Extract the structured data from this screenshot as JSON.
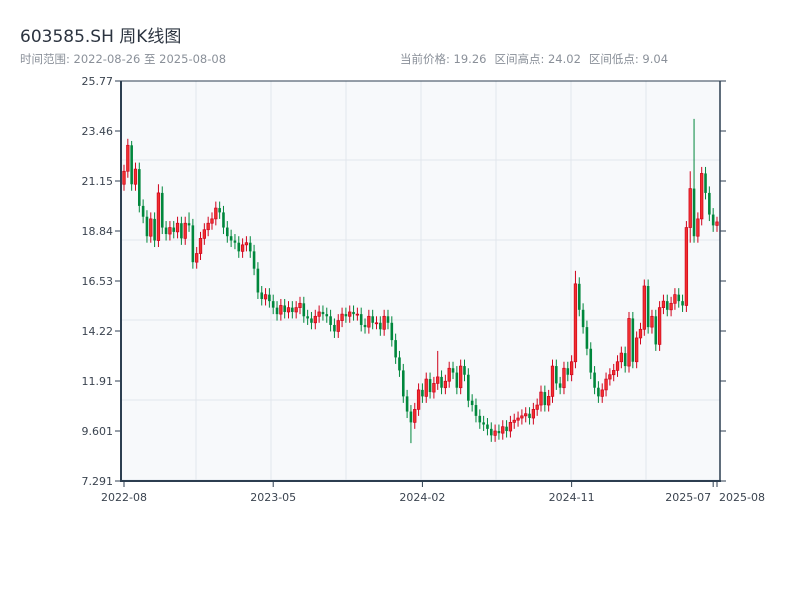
{
  "header": {
    "title": "603585.SH 周K线图",
    "range_label": "时间范围: 2022-08-26 至 2025-08-08",
    "current_price": "当前价格: 19.26",
    "range_high": "区间高点: 24.02",
    "range_low": "区间低点: 9.04"
  },
  "colors": {
    "up": "#d0021b",
    "up_fill": "#f0302f",
    "down": "#00873c",
    "axis": "#2c3e50",
    "grid": "#e2e6ec",
    "plot_bg": "#f7f9fb"
  },
  "chart_data": {
    "type": "candlestick",
    "title": "603585.SH 周K线图",
    "frequency": "weekly",
    "start_date": "2022-08-26",
    "end_date": "2025-08-08",
    "ylim": [
      7.291,
      25.77
    ],
    "yticks": [
      "25.77",
      "23.46",
      "21.15",
      "18.84",
      "16.53",
      "14.22",
      "11.91",
      "9.601",
      "7.291"
    ],
    "xticks": [
      {
        "label": "2022-08",
        "week": 0
      },
      {
        "label": "2023-05",
        "week": 39
      },
      {
        "label": "2024-02",
        "week": 78
      },
      {
        "label": "2024-11",
        "week": 117
      },
      {
        "label": "2025-07",
        "week": 154
      },
      {
        "label": "2025-08",
        "week": 155
      }
    ],
    "grid": true,
    "open": [
      21.0,
      21.6,
      22.8,
      21.0,
      21.7,
      20.0,
      19.5,
      18.6,
      19.4,
      18.4,
      20.6,
      19.0,
      18.7,
      19.0,
      18.8,
      19.2,
      18.5,
      19.2,
      19.1,
      17.4,
      17.8,
      18.5,
      18.9,
      19.2,
      19.4,
      19.9,
      19.7,
      19.0,
      18.6,
      18.4,
      18.3,
      17.9,
      18.2,
      18.3,
      17.9,
      17.1,
      16.0,
      15.7,
      15.9,
      15.6,
      15.3,
      15.0,
      15.4,
      15.1,
      15.3,
      15.1,
      15.3,
      15.5,
      14.9,
      14.8,
      14.6,
      14.9,
      15.1,
      15.0,
      14.9,
      14.5,
      14.2,
      14.7,
      15.0,
      14.9,
      15.1,
      15.0,
      15.0,
      14.5,
      14.4,
      14.9,
      14.6,
      14.6,
      14.3,
      14.9,
      14.6,
      13.8,
      13.0,
      12.4,
      11.2,
      10.5,
      10.0,
      10.6,
      11.5,
      11.2,
      12.0,
      11.4,
      11.8,
      12.1,
      11.6,
      11.9,
      12.5,
      12.3,
      11.6,
      12.6,
      12.2,
      11.0,
      10.8,
      10.3,
      10.0,
      9.9,
      9.7,
      9.4,
      9.6,
      9.5,
      9.8,
      9.6,
      10.0,
      10.1,
      10.2,
      10.3,
      10.4,
      10.2,
      10.6,
      10.8,
      11.4,
      10.8,
      11.2,
      12.6,
      11.8,
      11.6,
      12.5,
      12.2,
      12.8,
      16.4,
      15.2,
      14.4,
      13.4,
      12.3,
      11.6,
      11.2,
      11.5,
      12.0,
      12.2,
      12.4,
      12.8,
      13.2,
      12.6,
      14.8,
      12.8,
      13.9,
      14.3,
      16.3,
      14.4,
      14.9,
      13.6,
      15.3,
      15.6,
      15.2,
      15.5,
      15.9,
      15.6,
      15.4,
      19.0,
      20.8,
      18.6,
      19.4,
      21.5,
      20.6,
      19.6,
      19.1
    ],
    "high": [
      21.9,
      23.1,
      23.0,
      22.0,
      22.0,
      20.3,
      19.8,
      19.7,
      19.7,
      21.0,
      20.9,
      19.3,
      19.3,
      19.3,
      19.5,
      19.5,
      19.5,
      19.7,
      19.4,
      18.1,
      18.8,
      19.2,
      19.5,
      19.7,
      20.2,
      20.2,
      20.0,
      19.3,
      18.9,
      18.7,
      18.6,
      18.5,
      18.6,
      18.6,
      18.2,
      17.4,
      16.3,
      16.2,
      16.2,
      15.9,
      15.6,
      15.7,
      15.7,
      15.6,
      15.6,
      15.6,
      15.8,
      15.8,
      15.2,
      15.1,
      15.2,
      15.4,
      15.4,
      15.3,
      15.2,
      14.8,
      15.0,
      15.3,
      15.3,
      15.4,
      15.4,
      15.3,
      15.3,
      14.8,
      15.2,
      15.2,
      14.9,
      14.9,
      15.2,
      15.2,
      14.9,
      14.1,
      13.3,
      12.7,
      11.5,
      10.8,
      10.9,
      11.8,
      11.8,
      12.3,
      12.3,
      12.1,
      13.3,
      12.4,
      12.2,
      12.8,
      12.8,
      12.6,
      12.9,
      12.9,
      12.5,
      11.3,
      11.1,
      10.6,
      10.3,
      10.2,
      10.0,
      9.9,
      9.9,
      10.1,
      10.1,
      10.3,
      10.4,
      10.5,
      10.6,
      10.7,
      10.7,
      10.9,
      11.1,
      11.7,
      11.7,
      11.5,
      12.9,
      12.9,
      12.1,
      12.8,
      12.8,
      13.1,
      17.0,
      16.7,
      15.5,
      14.7,
      13.7,
      12.6,
      11.9,
      11.8,
      12.3,
      12.5,
      12.7,
      13.1,
      13.5,
      13.5,
      15.1,
      15.1,
      14.2,
      14.6,
      16.6,
      16.6,
      15.2,
      15.2,
      15.6,
      15.9,
      15.9,
      15.8,
      16.2,
      16.2,
      15.9,
      19.3,
      21.6,
      24.02,
      19.7,
      21.8,
      21.8,
      20.9,
      19.9,
      19.5
    ],
    "low": [
      20.7,
      21.3,
      20.7,
      20.7,
      19.7,
      19.2,
      18.3,
      18.3,
      18.1,
      18.1,
      18.7,
      18.4,
      18.4,
      18.5,
      18.5,
      18.2,
      18.2,
      18.8,
      17.1,
      17.1,
      17.5,
      18.2,
      18.6,
      18.9,
      19.1,
      19.4,
      18.7,
      18.3,
      18.1,
      18.0,
      17.6,
      17.6,
      17.9,
      17.6,
      16.8,
      15.7,
      15.4,
      15.4,
      15.3,
      15.0,
      14.7,
      14.7,
      14.8,
      14.8,
      14.8,
      14.8,
      15.0,
      14.6,
      14.5,
      14.3,
      14.3,
      14.6,
      14.7,
      14.6,
      14.2,
      13.9,
      13.9,
      14.4,
      14.6,
      14.6,
      14.7,
      14.7,
      14.2,
      14.1,
      14.1,
      14.3,
      14.3,
      14.0,
      14.0,
      14.3,
      13.5,
      12.7,
      12.1,
      10.9,
      10.2,
      9.04,
      9.7,
      10.3,
      10.9,
      10.9,
      11.1,
      11.1,
      11.5,
      11.3,
      11.3,
      11.6,
      12.0,
      11.3,
      11.3,
      11.9,
      10.7,
      10.5,
      10.0,
      9.7,
      9.6,
      9.4,
      9.1,
      9.1,
      9.2,
      9.2,
      9.3,
      9.3,
      9.7,
      9.8,
      9.9,
      10.0,
      9.9,
      9.9,
      10.3,
      10.5,
      10.5,
      10.5,
      10.9,
      11.5,
      11.3,
      11.3,
      11.9,
      11.9,
      12.5,
      14.9,
      14.1,
      13.1,
      12.0,
      11.3,
      10.9,
      10.9,
      11.2,
      11.7,
      11.9,
      12.1,
      12.5,
      12.3,
      12.3,
      12.5,
      12.5,
      13.6,
      14.0,
      14.1,
      14.1,
      13.3,
      13.3,
      15.0,
      14.9,
      14.9,
      15.2,
      15.3,
      15.1,
      15.1,
      18.3,
      18.3,
      18.3,
      19.1,
      20.3,
      19.3,
      18.8,
      18.8
    ],
    "close": [
      21.6,
      22.8,
      21.0,
      21.7,
      20.0,
      19.5,
      18.6,
      19.4,
      18.4,
      20.6,
      19.0,
      18.7,
      19.0,
      18.8,
      19.2,
      18.5,
      19.2,
      19.1,
      17.4,
      17.8,
      18.5,
      18.9,
      19.2,
      19.4,
      19.9,
      19.7,
      19.0,
      18.6,
      18.4,
      18.3,
      17.9,
      18.2,
      18.3,
      17.9,
      17.1,
      16.0,
      15.7,
      15.9,
      15.6,
      15.3,
      15.0,
      15.4,
      15.1,
      15.3,
      15.1,
      15.3,
      15.5,
      14.9,
      14.8,
      14.6,
      14.9,
      15.1,
      15.0,
      14.9,
      14.5,
      14.2,
      14.7,
      15.0,
      14.9,
      15.1,
      15.0,
      15.0,
      14.5,
      14.4,
      14.9,
      14.6,
      14.6,
      14.3,
      14.9,
      14.6,
      13.8,
      13.0,
      12.4,
      11.2,
      10.5,
      10.0,
      10.6,
      11.5,
      11.2,
      12.0,
      11.4,
      11.8,
      12.1,
      11.6,
      11.9,
      12.5,
      12.3,
      11.6,
      12.6,
      12.2,
      11.0,
      10.8,
      10.3,
      10.0,
      9.9,
      9.7,
      9.4,
      9.6,
      9.5,
      9.8,
      9.6,
      10.0,
      10.1,
      10.2,
      10.3,
      10.4,
      10.2,
      10.6,
      10.8,
      11.4,
      10.8,
      11.2,
      12.6,
      11.8,
      11.6,
      12.5,
      12.2,
      12.8,
      16.4,
      15.2,
      14.4,
      13.4,
      12.3,
      11.6,
      11.2,
      11.5,
      12.0,
      12.2,
      12.4,
      12.8,
      13.2,
      12.6,
      14.8,
      12.8,
      13.9,
      14.3,
      16.3,
      14.4,
      14.9,
      13.6,
      15.3,
      15.6,
      15.2,
      15.5,
      15.9,
      15.6,
      15.4,
      19.0,
      20.8,
      18.6,
      19.4,
      21.5,
      20.6,
      19.6,
      19.1,
      19.26
    ]
  }
}
